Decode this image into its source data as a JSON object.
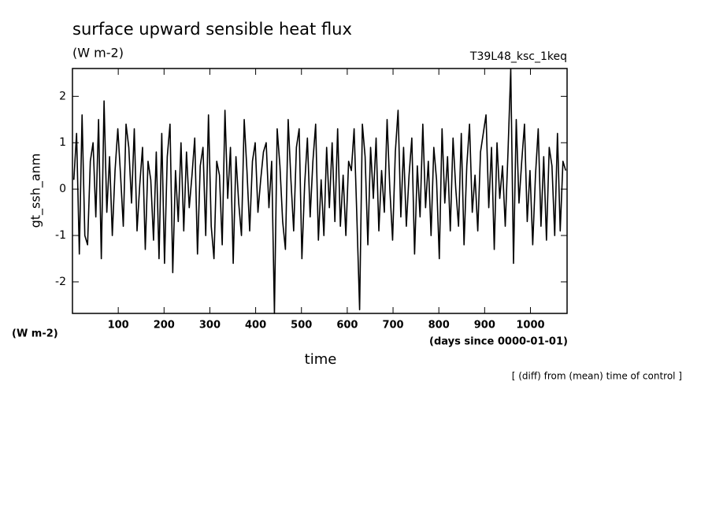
{
  "chart_data": {
    "type": "line",
    "title": "surface upward sensible heat flux",
    "subtitle": "(W m-2)",
    "run_label": "T39L48_ksc_1keq",
    "ylabel": "gt_ssh_anm",
    "yunits": "(W m-2)",
    "xlabel": "time",
    "xunits": "(days since 0000-01-01)",
    "note": "[ (diff) from (mean) time of control ]",
    "xlim": [
      0,
      1080
    ],
    "ylim": [
      -2.68,
      2.6
    ],
    "xticks": [
      100,
      200,
      300,
      400,
      500,
      600,
      700,
      800,
      900,
      1000
    ],
    "yticks": [
      -2,
      -1,
      0,
      1,
      2
    ],
    "grid": false,
    "series": [
      {
        "color": "#000000",
        "x": [
          3,
          9,
          15,
          21,
          27,
          33,
          39,
          45,
          51,
          57,
          63,
          69,
          75,
          81,
          87,
          93,
          99,
          105,
          111,
          117,
          123,
          129,
          135,
          141,
          147,
          153,
          159,
          165,
          171,
          177,
          183,
          189,
          195,
          201,
          207,
          213,
          219,
          225,
          231,
          237,
          243,
          249,
          255,
          261,
          267,
          273,
          279,
          285,
          291,
          297,
          303,
          309,
          315,
          321,
          327,
          333,
          339,
          345,
          351,
          357,
          363,
          369,
          375,
          381,
          387,
          393,
          399,
          405,
          411,
          417,
          423,
          429,
          435,
          441,
          447,
          453,
          459,
          465,
          471,
          477,
          483,
          489,
          495,
          501,
          507,
          513,
          519,
          525,
          531,
          537,
          543,
          549,
          555,
          561,
          567,
          573,
          579,
          585,
          591,
          597,
          603,
          609,
          615,
          621,
          627,
          633,
          639,
          645,
          651,
          657,
          663,
          669,
          675,
          681,
          687,
          693,
          699,
          705,
          711,
          717,
          723,
          729,
          735,
          741,
          747,
          753,
          759,
          765,
          771,
          777,
          783,
          789,
          795,
          801,
          807,
          813,
          819,
          825,
          831,
          837,
          843,
          849,
          855,
          861,
          867,
          873,
          879,
          885,
          891,
          897,
          903,
          909,
          915,
          921,
          927,
          933,
          939,
          945,
          951,
          957,
          963,
          969,
          975,
          981,
          987,
          993,
          999,
          1005,
          1011,
          1017,
          1023,
          1029,
          1035,
          1041,
          1047,
          1053,
          1059,
          1065,
          1071,
          1077
        ],
        "values": [
          0.2,
          1.2,
          -1.4,
          1.6,
          -1.0,
          -1.2,
          0.6,
          1.0,
          -0.6,
          1.5,
          -1.5,
          1.9,
          -0.5,
          0.7,
          -1.0,
          0.4,
          1.3,
          0.3,
          -0.8,
          1.4,
          0.9,
          -0.3,
          1.3,
          -0.9,
          0.1,
          0.9,
          -1.3,
          0.6,
          0.2,
          -1.1,
          0.8,
          -1.5,
          1.2,
          -1.6,
          0.7,
          1.4,
          -1.8,
          0.4,
          -0.7,
          1.0,
          -0.9,
          0.8,
          -0.4,
          0.3,
          1.1,
          -1.4,
          0.5,
          0.9,
          -1.0,
          1.6,
          -0.8,
          -1.5,
          0.6,
          0.3,
          -1.2,
          1.7,
          -0.2,
          0.9,
          -1.6,
          0.7,
          -0.3,
          -1.0,
          1.5,
          0.4,
          -0.9,
          0.6,
          1.0,
          -0.5,
          0.2,
          0.8,
          1.0,
          -0.4,
          0.6,
          -2.68,
          1.3,
          0.5,
          -0.7,
          -1.3,
          1.5,
          0.2,
          -0.9,
          0.9,
          1.3,
          -1.5,
          0.1,
          1.1,
          -0.6,
          0.6,
          1.4,
          -1.1,
          0.2,
          -1.0,
          0.9,
          -0.4,
          1.0,
          -0.7,
          1.3,
          -0.8,
          0.3,
          -1.0,
          0.6,
          0.4,
          1.3,
          -0.6,
          -2.6,
          1.4,
          0.7,
          -1.2,
          0.9,
          -0.2,
          1.1,
          -0.9,
          0.4,
          -0.5,
          1.5,
          0.0,
          -1.1,
          0.8,
          1.7,
          -0.6,
          0.9,
          -0.8,
          0.3,
          1.1,
          -1.4,
          0.5,
          -0.6,
          1.4,
          -0.4,
          0.6,
          -1.0,
          0.9,
          0.2,
          -1.5,
          1.3,
          -0.3,
          0.7,
          -0.9,
          1.1,
          0.0,
          -0.8,
          1.2,
          -1.2,
          0.5,
          1.4,
          -0.5,
          0.3,
          -0.9,
          0.8,
          1.2,
          1.6,
          -0.4,
          0.9,
          -1.3,
          1.0,
          -0.2,
          0.5,
          -0.8,
          0.8,
          2.59,
          -1.6,
          1.5,
          -0.3,
          0.6,
          1.4,
          -0.7,
          0.4,
          -1.2,
          0.3,
          1.3,
          -0.8,
          0.7,
          -1.1,
          0.9,
          0.5,
          -1.0,
          1.2,
          -0.9,
          0.6,
          0.4
        ]
      }
    ]
  }
}
